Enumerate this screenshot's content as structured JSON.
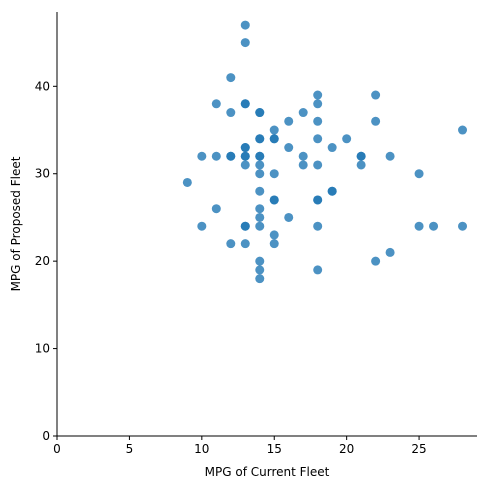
{
  "chart_data": {
    "type": "scatter",
    "xlabel": "MPG of Current Fleet",
    "ylabel": "MPG of Proposed Fleet",
    "xlim": [
      0,
      29
    ],
    "ylim": [
      0,
      48.5
    ],
    "xticks": [
      0,
      5,
      10,
      15,
      20,
      25
    ],
    "yticks": [
      0,
      10,
      20,
      30,
      40
    ],
    "grid": false,
    "marker_color": "#1f77b4",
    "series": [
      {
        "points": [
          [
            13,
            47
          ],
          [
            13,
            45
          ],
          [
            12,
            41
          ],
          [
            18,
            39
          ],
          [
            22,
            39
          ],
          [
            11,
            38
          ],
          [
            13,
            38
          ],
          [
            13,
            38
          ],
          [
            18,
            38
          ],
          [
            12,
            37
          ],
          [
            14,
            37
          ],
          [
            14,
            37
          ],
          [
            17,
            37
          ],
          [
            16,
            36
          ],
          [
            18,
            36
          ],
          [
            22,
            36
          ],
          [
            15,
            35
          ],
          [
            28,
            35
          ],
          [
            14,
            34
          ],
          [
            14,
            34
          ],
          [
            15,
            34
          ],
          [
            15,
            34
          ],
          [
            18,
            34
          ],
          [
            20,
            34
          ],
          [
            13,
            33
          ],
          [
            13,
            33
          ],
          [
            16,
            33
          ],
          [
            19,
            33
          ],
          [
            10,
            32
          ],
          [
            11,
            32
          ],
          [
            12,
            32
          ],
          [
            12,
            32
          ],
          [
            13,
            32
          ],
          [
            13,
            32
          ],
          [
            14,
            32
          ],
          [
            14,
            32
          ],
          [
            17,
            32
          ],
          [
            21,
            32
          ],
          [
            21,
            32
          ],
          [
            23,
            32
          ],
          [
            13,
            31
          ],
          [
            14,
            31
          ],
          [
            17,
            31
          ],
          [
            18,
            31
          ],
          [
            21,
            31
          ],
          [
            14,
            30
          ],
          [
            15,
            30
          ],
          [
            25,
            30
          ],
          [
            9,
            29
          ],
          [
            14,
            28
          ],
          [
            19,
            28
          ],
          [
            19,
            28
          ],
          [
            15,
            27
          ],
          [
            15,
            27
          ],
          [
            18,
            27
          ],
          [
            18,
            27
          ],
          [
            11,
            26
          ],
          [
            14,
            26
          ],
          [
            14,
            25
          ],
          [
            16,
            25
          ],
          [
            10,
            24
          ],
          [
            13,
            24
          ],
          [
            13,
            24
          ],
          [
            14,
            24
          ],
          [
            18,
            24
          ],
          [
            25,
            24
          ],
          [
            26,
            24
          ],
          [
            28,
            24
          ],
          [
            15,
            23
          ],
          [
            12,
            22
          ],
          [
            13,
            22
          ],
          [
            15,
            22
          ],
          [
            23,
            21
          ],
          [
            14,
            20
          ],
          [
            22,
            20
          ],
          [
            14,
            19
          ],
          [
            18,
            19
          ],
          [
            14,
            18
          ]
        ]
      }
    ]
  }
}
